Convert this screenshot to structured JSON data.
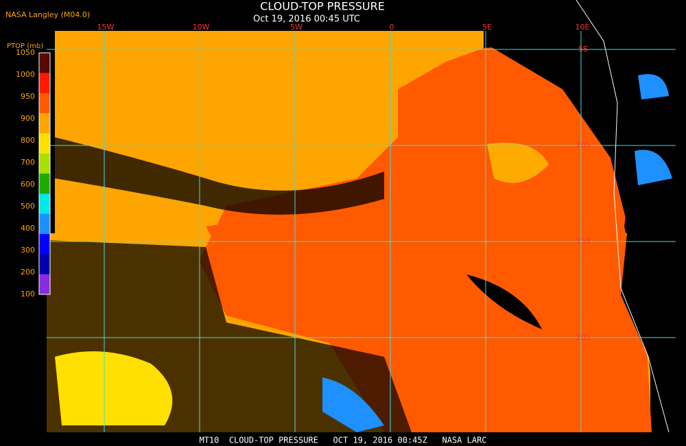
{
  "header": {
    "source": "NASA Langley (M04.0)",
    "title": "CLOUD-TOP PRESSURE",
    "subtitle": "Oct 19, 2016 00:45 UTC"
  },
  "colorbar": {
    "title": "PTOP (mb)",
    "labels": [
      "1050",
      "1000",
      "950",
      "900",
      "800",
      "700",
      "600",
      "500",
      "400",
      "300",
      "200",
      "100"
    ],
    "colors": [
      "#5a0a00",
      "#ff1a00",
      "#ff5a00",
      "#ffa500",
      "#ffe000",
      "#a8e000",
      "#1faa00",
      "#00e8e8",
      "#1e90ff",
      "#0000ff",
      "#0000b0",
      "#8a2be2"
    ]
  },
  "grid": {
    "lon_labels": [
      "15W",
      "10W",
      "5W",
      "0",
      "5E",
      "10E"
    ],
    "lat_labels": [
      "5S",
      "10S",
      "15S",
      "20S"
    ]
  },
  "footer": {
    "caption": "MT10  CLOUD-TOP PRESSURE   OCT 19, 2016 00:45Z   NASA LARC"
  }
}
